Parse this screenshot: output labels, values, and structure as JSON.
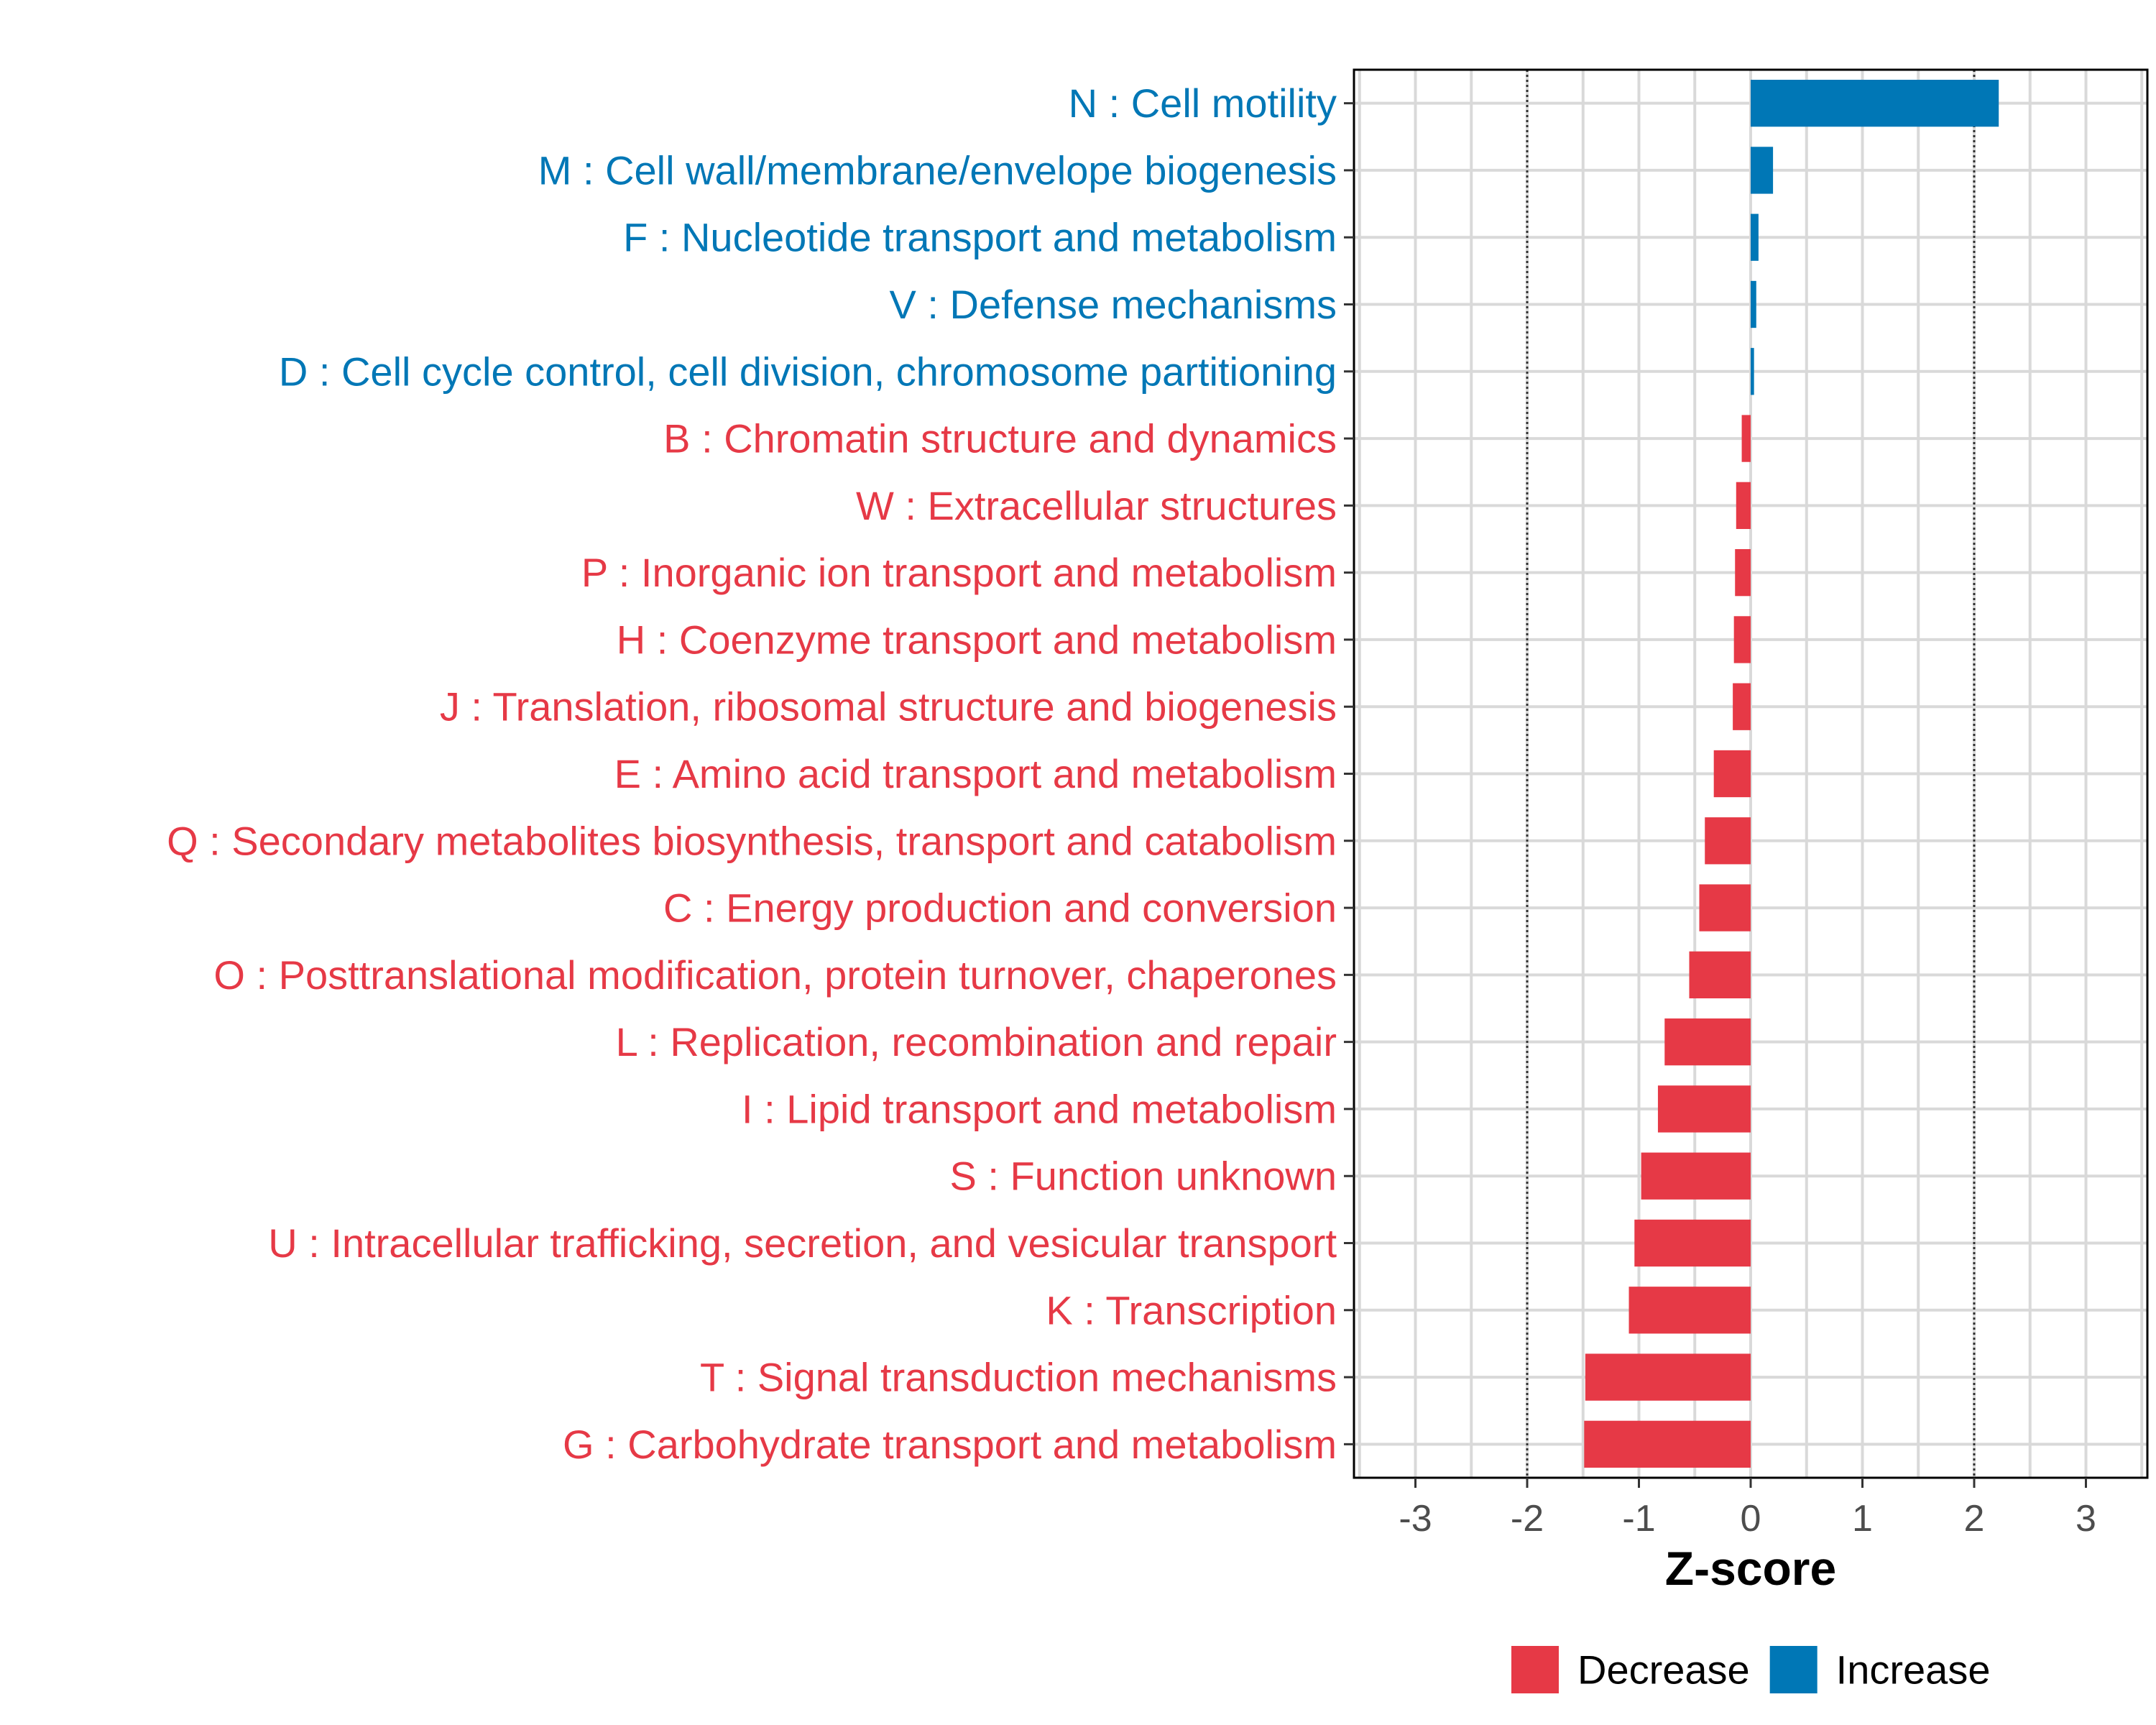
{
  "chart_data": {
    "type": "bar",
    "orientation": "horizontal",
    "title": "",
    "xlabel": "Z-score",
    "ylabel": "",
    "xlim": [
      -3.55,
      3.55
    ],
    "xticks": [
      -3,
      -2,
      -1,
      0,
      1,
      2,
      3
    ],
    "xtick_labels": [
      "-3",
      "-2",
      "-1",
      "0",
      "1",
      "2",
      "3"
    ],
    "reference_lines": [
      -2,
      2
    ],
    "grid": true,
    "legend_position": "bottom",
    "categories": [
      "N : Cell motility",
      "M : Cell wall/membrane/envelope biogenesis",
      "F : Nucleotide transport and metabolism",
      "V : Defense mechanisms",
      "D : Cell cycle control, cell division, chromosome partitioning",
      "B : Chromatin structure and dynamics",
      "W : Extracellular structures",
      "P : Inorganic ion transport and metabolism",
      "H : Coenzyme transport and metabolism",
      "J : Translation, ribosomal structure and biogenesis",
      "E : Amino acid transport and metabolism",
      "Q : Secondary metabolites biosynthesis, transport and catabolism",
      "C : Energy production and conversion",
      "O : Posttranslational modification, protein turnover, chaperones",
      "L : Replication, recombination and repair",
      "I : Lipid transport and metabolism",
      "S : Function unknown",
      "U : Intracellular trafficking, secretion, and vesicular transport",
      "K : Transcription",
      "T : Signal transduction mechanisms",
      "G : Carbohydrate transport and metabolism"
    ],
    "values": [
      2.22,
      0.2,
      0.07,
      0.05,
      0.03,
      -0.08,
      -0.13,
      -0.14,
      -0.15,
      -0.16,
      -0.33,
      -0.41,
      -0.46,
      -0.55,
      -0.77,
      -0.83,
      -0.98,
      -1.04,
      -1.09,
      -1.48,
      -1.49
    ],
    "groups": [
      "Increase",
      "Increase",
      "Increase",
      "Increase",
      "Increase",
      "Decrease",
      "Decrease",
      "Decrease",
      "Decrease",
      "Decrease",
      "Decrease",
      "Decrease",
      "Decrease",
      "Decrease",
      "Decrease",
      "Decrease",
      "Decrease",
      "Decrease",
      "Decrease",
      "Decrease",
      "Decrease"
    ],
    "legend": [
      {
        "name": "Decrease",
        "color": "#E63946"
      },
      {
        "name": "Increase",
        "color": "#0077B6"
      }
    ],
    "colors": {
      "Decrease": "#E63946",
      "Increase": "#0077B6"
    }
  }
}
